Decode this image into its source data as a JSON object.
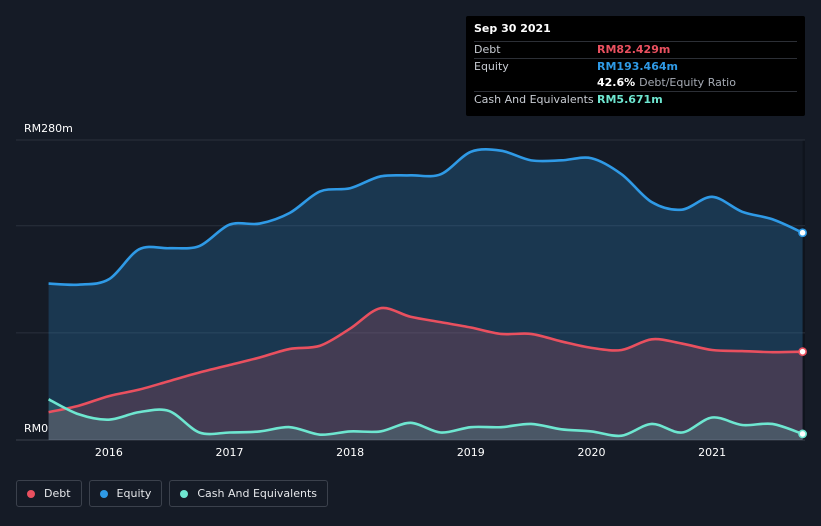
{
  "tooltip": {
    "date": "Sep 30 2021",
    "debt_label": "Debt",
    "debt_value": "RM82.429m",
    "equity_label": "Equity",
    "equity_value": "RM193.464m",
    "ratio_value": "42.6%",
    "ratio_label": "Debt/Equity Ratio",
    "cash_label": "Cash And Equivalents",
    "cash_value": "RM5.671m"
  },
  "legend": {
    "debt": "Debt",
    "equity": "Equity",
    "cash": "Cash And Equivalents"
  },
  "colors": {
    "debt": "#e9505f",
    "equity": "#2f9ae6",
    "cash": "#6ee6d0",
    "background": "#151b26"
  },
  "chart_data": {
    "type": "area",
    "ylim": [
      0,
      280
    ],
    "y_tick_labels": [
      "RM280m",
      "RM0"
    ],
    "x_tick_labels": [
      "2016",
      "2017",
      "2018",
      "2019",
      "2020",
      "2021"
    ],
    "grid": true,
    "legend_placement": "bottom-left",
    "series": [
      {
        "name": "Equity",
        "x": [
          2015.5,
          2015.75,
          2016.0,
          2016.25,
          2016.5,
          2016.75,
          2017.0,
          2017.25,
          2017.5,
          2017.75,
          2018.0,
          2018.25,
          2018.5,
          2018.75,
          2019.0,
          2019.25,
          2019.5,
          2019.75,
          2020.0,
          2020.25,
          2020.5,
          2020.75,
          2021.0,
          2021.25,
          2021.5,
          2021.75
        ],
        "values": [
          146,
          145,
          150,
          178,
          179,
          181,
          201,
          202,
          212,
          232,
          235,
          246,
          247,
          248,
          269,
          270,
          261,
          261,
          263,
          248,
          222,
          215,
          227,
          213,
          206,
          193.464
        ]
      },
      {
        "name": "Debt",
        "x": [
          2015.5,
          2015.75,
          2016.0,
          2016.25,
          2016.5,
          2016.75,
          2017.0,
          2017.25,
          2017.5,
          2017.75,
          2018.0,
          2018.25,
          2018.5,
          2018.75,
          2019.0,
          2019.25,
          2019.5,
          2019.75,
          2020.0,
          2020.25,
          2020.5,
          2020.75,
          2021.0,
          2021.25,
          2021.5,
          2021.75
        ],
        "values": [
          26,
          32,
          41,
          47,
          55,
          63,
          70,
          77,
          85,
          88,
          104,
          123,
          115,
          110,
          105,
          99,
          99,
          92,
          86,
          84,
          94,
          90,
          84,
          83,
          82,
          82.429
        ]
      },
      {
        "name": "Cash And Equivalents",
        "x": [
          2015.5,
          2015.75,
          2016.0,
          2016.25,
          2016.5,
          2016.75,
          2017.0,
          2017.25,
          2017.5,
          2017.75,
          2018.0,
          2018.25,
          2018.5,
          2018.75,
          2019.0,
          2019.25,
          2019.5,
          2019.75,
          2020.0,
          2020.25,
          2020.5,
          2020.75,
          2021.0,
          2021.25,
          2021.5,
          2021.75
        ],
        "values": [
          38,
          24,
          19,
          26,
          27,
          7,
          7,
          8,
          12,
          5,
          8,
          8,
          16,
          7,
          12,
          12,
          15,
          10,
          8,
          4,
          15,
          7,
          21,
          14,
          15,
          5.671
        ]
      }
    ]
  }
}
